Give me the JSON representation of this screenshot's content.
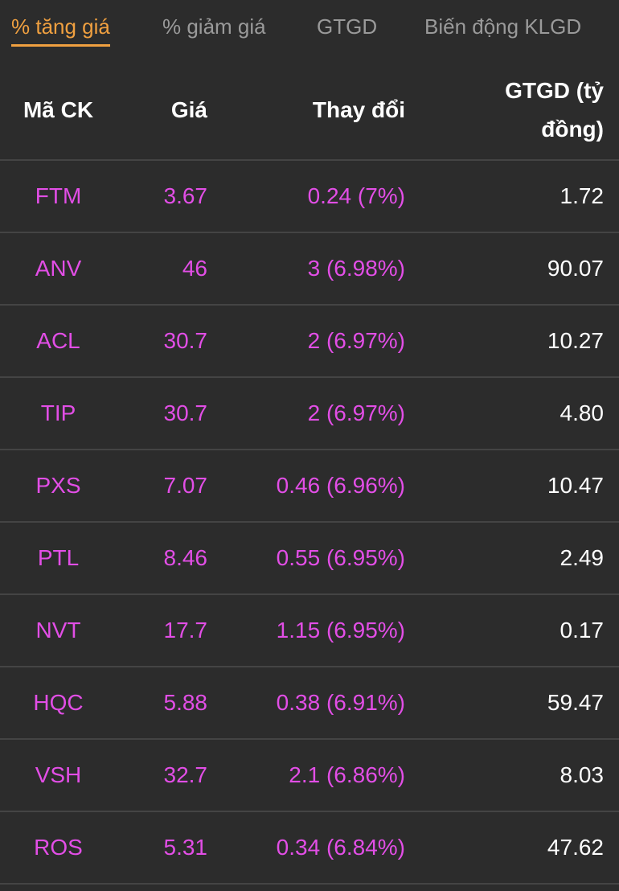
{
  "tabs": [
    "% tăng giá",
    "% giảm giá",
    "GTGD",
    "Biến động KLGD"
  ],
  "table": {
    "headers": [
      "Mã CK",
      "Giá",
      "Thay đổi",
      "GTGD (tỷ đồng)"
    ],
    "rows": [
      [
        "FTM",
        "3.67",
        "0.24 (7%)",
        "1.72"
      ],
      [
        "ANV",
        "46",
        "3 (6.98%)",
        "90.07"
      ],
      [
        "ACL",
        "30.7",
        "2 (6.97%)",
        "10.27"
      ],
      [
        "TIP",
        "30.7",
        "2 (6.97%)",
        "4.80"
      ],
      [
        "PXS",
        "7.07",
        "0.46 (6.96%)",
        "10.47"
      ],
      [
        "PTL",
        "8.46",
        "0.55 (6.95%)",
        "2.49"
      ],
      [
        "NVT",
        "17.7",
        "1.15 (6.95%)",
        "0.17"
      ],
      [
        "HQC",
        "5.88",
        "0.38 (6.91%)",
        "59.47"
      ],
      [
        "VSH",
        "32.7",
        "2.1 (6.86%)",
        "8.03"
      ],
      [
        "ROS",
        "5.31",
        "0.34 (6.84%)",
        "47.62"
      ]
    ]
  }
}
